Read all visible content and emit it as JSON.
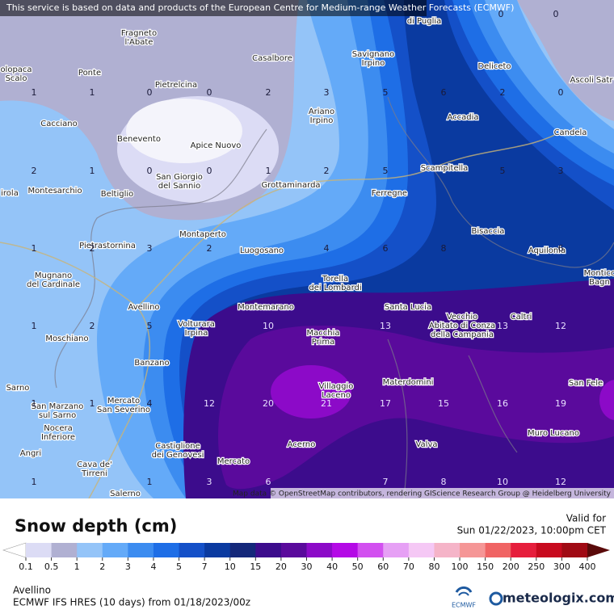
{
  "notice": "This service is based on data and products of the European Centre for Medium-range Weather Forecasts (ECMWF)",
  "attribution": "Map data © OpenStreetMap contributors, rendering GIScience Research Group @ Heidelberg University",
  "places": [
    [
      "di Puglia"
    ],
    [
      "Fragneto",
      "l'Abate"
    ],
    [
      "Casalbore"
    ],
    [
      "Savignano",
      "Irpino"
    ],
    [
      "Deliceto"
    ],
    [
      "Ascoli Satr"
    ],
    [
      "olopaca",
      "Scalo"
    ],
    [
      "Ponte"
    ],
    [
      "Pietrelcina"
    ],
    [
      "Ariano",
      "Irpino"
    ],
    [
      "Accadia"
    ],
    [
      "Cacciano"
    ],
    [
      "Benevento"
    ],
    [
      "Apice Nuovo"
    ],
    [
      "Candela"
    ],
    [
      "Scampitella"
    ],
    [
      "San Giorgio",
      "del Sannio"
    ],
    [
      "Grottaminarda"
    ],
    [
      "Montesarchio"
    ],
    [
      "Beltiglio"
    ],
    [
      "irola"
    ],
    [
      "Ferregne"
    ],
    [
      "Bisaccia"
    ],
    [
      "Montaperto"
    ],
    [
      "Pietrastornina"
    ],
    [
      "Luogosano"
    ],
    [
      "Aquilonia"
    ],
    [
      "Monticc",
      "Bagn"
    ],
    [
      "Mugnano",
      "del Cardinale"
    ],
    [
      "Torella",
      "dei Lombardi"
    ],
    [
      "Avellino"
    ],
    [
      "Montemarano"
    ],
    [
      "Santa Lucia"
    ],
    [
      "Vecchio",
      "Abitato di Conza",
      "della Campania"
    ],
    [
      "Caltri"
    ],
    [
      "Volturara",
      "Irpina"
    ],
    [
      "Macchia",
      "Prima"
    ],
    [
      "Moschiano"
    ],
    [
      "Banzano"
    ],
    [
      "Villaggio",
      "Laceno"
    ],
    [
      "Materdomini"
    ],
    [
      "San Fele"
    ],
    [
      "Sarno"
    ],
    [
      "San Marzano",
      "sul Sarno"
    ],
    [
      "Mercato",
      "San Severino"
    ],
    [
      "Nocera",
      "Inferiore"
    ],
    [
      "Muro Lucano"
    ],
    [
      "Castiglione",
      "dei Genovesi"
    ],
    [
      "Acerno"
    ],
    [
      "Valva"
    ],
    [
      "Angri"
    ],
    [
      "Mercato"
    ],
    [
      "Cava de'",
      "Tirreni"
    ],
    [
      "Salerno"
    ]
  ],
  "contour_labels": [
    0,
    0,
    1,
    1,
    0,
    0,
    2,
    3,
    5,
    6,
    2,
    0,
    2,
    1,
    0,
    0,
    1,
    2,
    5,
    5,
    3,
    1,
    2,
    3,
    2,
    4,
    6,
    8,
    6,
    1,
    2,
    5,
    10,
    13,
    13,
    12,
    1,
    1,
    4,
    12,
    20,
    21,
    17,
    15,
    16,
    19,
    1,
    1,
    3,
    6,
    7,
    8,
    10,
    12
  ],
  "legend": {
    "title": "Snow depth (cm)",
    "valid_label": "Valid for",
    "valid_time": "Sun 01/22/2023, 10:00pm CET",
    "levels": [
      0.1,
      0.5,
      1,
      2,
      3,
      4,
      5,
      7,
      10,
      15,
      20,
      30,
      40,
      50,
      60,
      70,
      80,
      100,
      150,
      200,
      250,
      300,
      400
    ],
    "colors": [
      "#ffffff",
      "#dcdcf5",
      "#b0b0d2",
      "#94c4f8",
      "#64aaf8",
      "#3c8cf0",
      "#1e6ee6",
      "#1450c8",
      "#0a3aa0",
      "#14287a",
      "#3c0c8c",
      "#5a0a9c",
      "#8c0ac8",
      "#b40ae6",
      "#d250f0",
      "#e6a0f5",
      "#f5c8f5",
      "#f5b4c8",
      "#f59696",
      "#f06464",
      "#e61e3c",
      "#c80a1e",
      "#a00a14",
      "#5a0a0a"
    ]
  },
  "footer": {
    "location": "Avellino",
    "model": "ECMWF IFS HRES (10 days) from 01/18/2023/00z",
    "ecmwf": "ECMWF",
    "brand": "meteologix.com"
  }
}
